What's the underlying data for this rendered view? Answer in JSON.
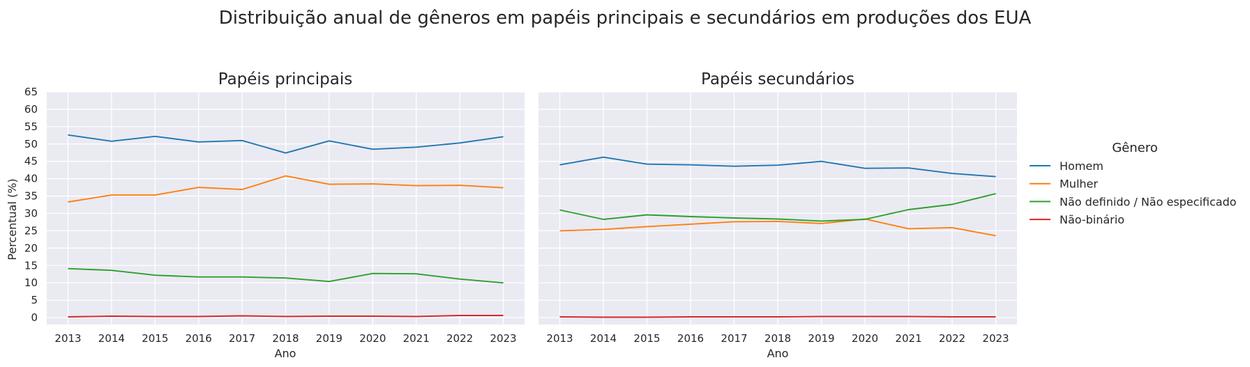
{
  "chart_data": {
    "type": "line",
    "title": "Distribuição anual de gêneros em papéis principais e secundários em produções dos EUA",
    "ylabel": "Percentual (%)",
    "xlabel": "Ano",
    "ylim": [
      -2,
      65
    ],
    "yticks": [
      0,
      5,
      10,
      15,
      20,
      25,
      30,
      35,
      40,
      45,
      50,
      55,
      60,
      65
    ],
    "x": [
      2013,
      2014,
      2015,
      2016,
      2017,
      2018,
      2019,
      2020,
      2021,
      2022,
      2023
    ],
    "grid": true,
    "legend": {
      "title": "Gênero",
      "placement": "right",
      "entries": [
        "Homem",
        "Mulher",
        "Não definido / Não especificado",
        "Não-binário"
      ]
    },
    "colors": {
      "Homem": "#1f77b4",
      "Mulher": "#ff7f0e",
      "Não definido / Não especificado": "#2ca02c",
      "Não-binário": "#d62728",
      "background": "#eaeaf2",
      "grid": "#ffffff"
    },
    "panels": [
      {
        "title": "Papéis principais",
        "series": [
          {
            "name": "Homem",
            "values": [
              52.6,
              50.8,
              52.2,
              50.6,
              51.0,
              47.4,
              50.9,
              48.5,
              49.1,
              50.3,
              52.1
            ]
          },
          {
            "name": "Mulher",
            "values": [
              33.3,
              35.3,
              35.3,
              37.5,
              36.9,
              40.8,
              38.4,
              38.5,
              38.0,
              38.1,
              37.4
            ]
          },
          {
            "name": "Não definido / Não especificado",
            "values": [
              14.1,
              13.6,
              12.2,
              11.7,
              11.7,
              11.4,
              10.4,
              12.7,
              12.6,
              11.1,
              10.0
            ]
          },
          {
            "name": "Não-binário",
            "values": [
              0.2,
              0.4,
              0.3,
              0.3,
              0.5,
              0.3,
              0.4,
              0.4,
              0.3,
              0.6,
              0.6
            ]
          }
        ]
      },
      {
        "title": "Papéis secundários",
        "series": [
          {
            "name": "Homem",
            "values": [
              44.0,
              46.2,
              44.2,
              44.0,
              43.6,
              43.9,
              45.0,
              43.0,
              43.1,
              41.5,
              40.6
            ]
          },
          {
            "name": "Mulher",
            "values": [
              25.0,
              25.4,
              26.2,
              26.9,
              27.6,
              27.7,
              27.1,
              28.4,
              25.6,
              25.9,
              23.6
            ]
          },
          {
            "name": "Não definido / Não especificado",
            "values": [
              31.0,
              28.3,
              29.6,
              29.1,
              28.7,
              28.4,
              27.8,
              28.3,
              31.1,
              32.6,
              35.7
            ]
          },
          {
            "name": "Não-binário",
            "values": [
              0.2,
              0.1,
              0.1,
              0.2,
              0.2,
              0.2,
              0.3,
              0.3,
              0.3,
              0.2,
              0.2
            ]
          }
        ]
      }
    ]
  }
}
